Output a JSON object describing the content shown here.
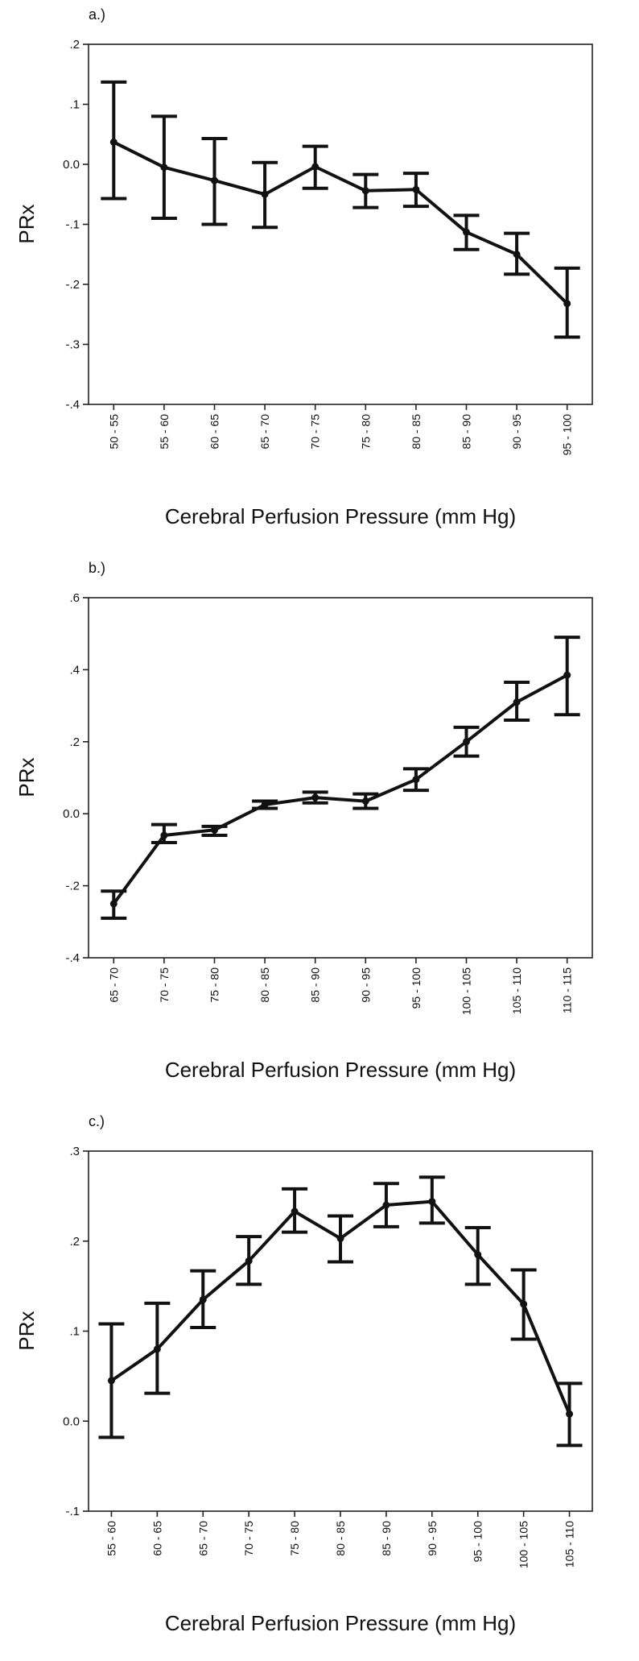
{
  "chart_data": [
    {
      "type": "line",
      "panel_label": "a.)",
      "title": "",
      "xlabel": "Cerebral Perfusion Pressure (mm Hg)",
      "ylabel": "PRx",
      "ylim": [
        -0.4,
        0.2
      ],
      "yticks": [
        0.2,
        0.1,
        0.0,
        -0.1,
        -0.2,
        -0.3,
        -0.4
      ],
      "ytick_labels": [
        ".2",
        ".1",
        "0.0",
        "-.1",
        "-.2",
        "-.3",
        "-.4"
      ],
      "categories": [
        "50 - 55",
        "55 - 60",
        "60 - 65",
        "65 - 70",
        "70 - 75",
        "75 - 80",
        "80 - 85",
        "85 - 90",
        "90 - 95",
        "95 - 100"
      ],
      "series": [
        {
          "values": [
            0.037,
            -0.005,
            -0.027,
            -0.05,
            -0.004,
            -0.044,
            -0.042,
            -0.113,
            -0.15,
            -0.232
          ],
          "err_low": [
            -0.057,
            -0.09,
            -0.1,
            -0.105,
            -0.04,
            -0.072,
            -0.07,
            -0.142,
            -0.183,
            -0.288
          ],
          "err_high": [
            0.137,
            0.08,
            0.043,
            0.003,
            0.03,
            -0.017,
            -0.015,
            -0.085,
            -0.115,
            -0.173
          ]
        }
      ],
      "grid": false
    },
    {
      "type": "line",
      "panel_label": "b.)",
      "title": "",
      "xlabel": "Cerebral Perfusion Pressure (mm Hg)",
      "ylabel": "PRx",
      "ylim": [
        -0.4,
        0.6
      ],
      "yticks": [
        0.6,
        0.4,
        0.2,
        0.0,
        -0.2,
        -0.4
      ],
      "ytick_labels": [
        ".6",
        ".4",
        ".2",
        "0.0",
        "-.2",
        "-.4"
      ],
      "categories": [
        "65 - 70",
        "70 - 75",
        "75 - 80",
        "80 - 85",
        "85 - 90",
        "90 - 95",
        "95 - 100",
        "100 - 105",
        "105 - 110",
        "110 - 115"
      ],
      "series": [
        {
          "values": [
            -0.25,
            -0.06,
            -0.045,
            0.025,
            0.045,
            0.035,
            0.095,
            0.2,
            0.31,
            0.385
          ],
          "err_low": [
            -0.29,
            -0.08,
            -0.06,
            0.015,
            0.03,
            0.015,
            0.065,
            0.16,
            0.26,
            0.275
          ],
          "err_high": [
            -0.215,
            -0.03,
            -0.035,
            0.035,
            0.06,
            0.055,
            0.125,
            0.24,
            0.365,
            0.49
          ]
        }
      ],
      "grid": false
    },
    {
      "type": "line",
      "panel_label": "c.)",
      "title": "",
      "xlabel": "Cerebral Perfusion Pressure (mm Hg)",
      "ylabel": "PRx",
      "ylim": [
        -0.1,
        0.3
      ],
      "yticks": [
        0.3,
        0.2,
        0.1,
        0.0,
        -0.1
      ],
      "ytick_labels": [
        ".3",
        ".2",
        ".1",
        "0.0",
        "-.1"
      ],
      "categories": [
        "55 - 60",
        "60 - 65",
        "65 - 70",
        "70 - 75",
        "75 - 80",
        "80 - 85",
        "85 - 90",
        "90 - 95",
        "95 - 100",
        "100 - 105",
        "105 - 110"
      ],
      "series": [
        {
          "values": [
            0.045,
            0.08,
            0.135,
            0.178,
            0.233,
            0.203,
            0.24,
            0.244,
            0.185,
            0.13,
            0.008
          ],
          "err_low": [
            -0.018,
            0.031,
            0.104,
            0.152,
            0.21,
            0.177,
            0.216,
            0.22,
            0.152,
            0.091,
            -0.027
          ],
          "err_high": [
            0.108,
            0.131,
            0.167,
            0.205,
            0.258,
            0.228,
            0.264,
            0.271,
            0.215,
            0.168,
            0.042
          ]
        }
      ],
      "grid": false
    }
  ]
}
